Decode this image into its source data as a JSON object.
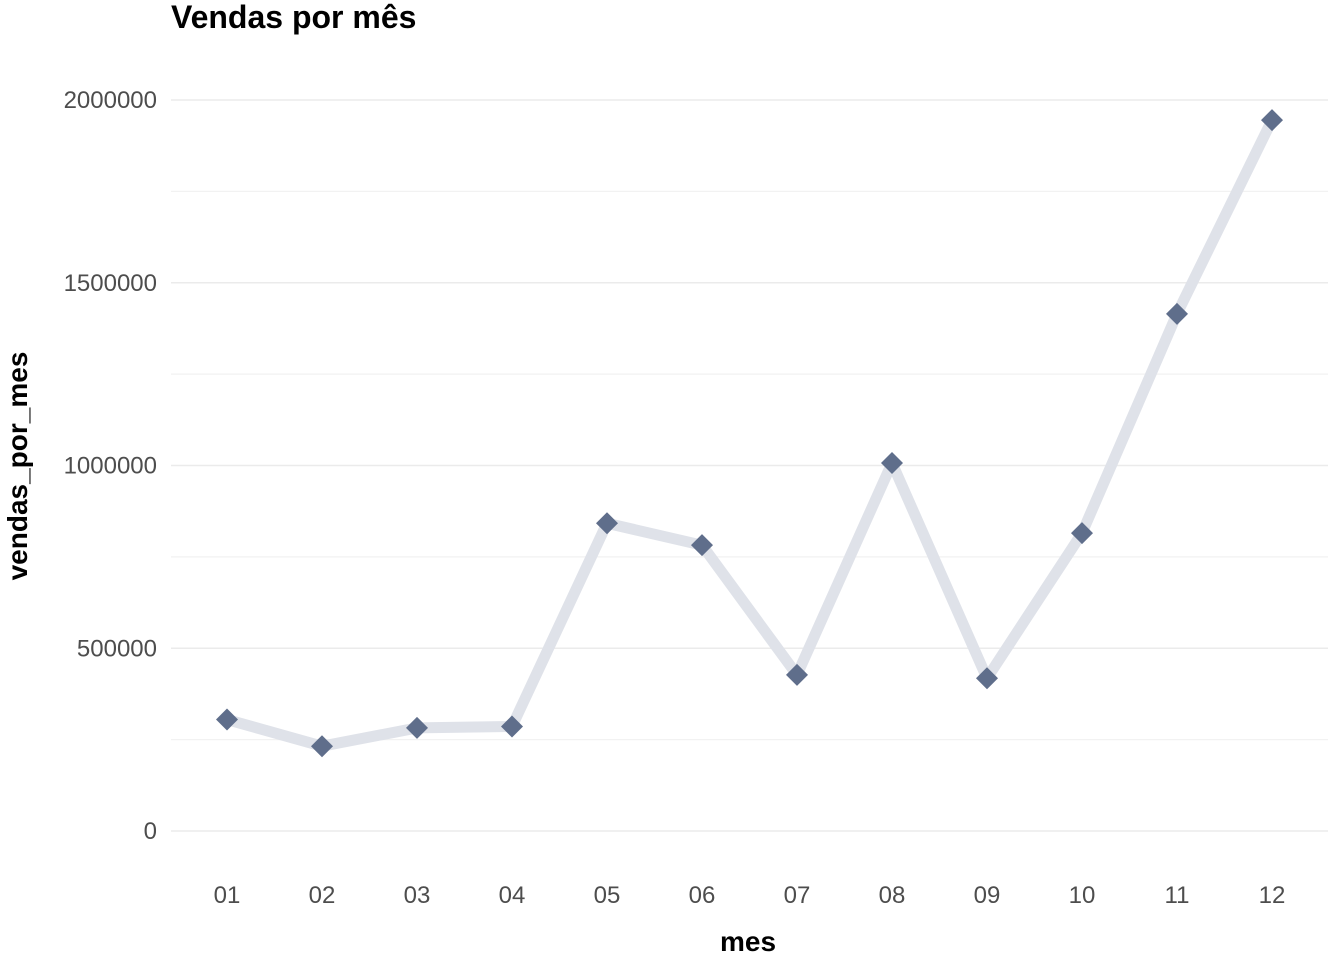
{
  "chart_data": {
    "type": "line",
    "title": "Vendas por mês",
    "xlabel": "mes",
    "ylabel": "vendas_por_mes",
    "categories": [
      "01",
      "02",
      "03",
      "04",
      "05",
      "06",
      "07",
      "08",
      "09",
      "10",
      "11",
      "12"
    ],
    "series": [
      {
        "values": [
          305000,
          232000,
          282000,
          286000,
          842000,
          782000,
          427000,
          1007000,
          418000,
          815000,
          1415000,
          1945000
        ]
      }
    ],
    "yticks": [
      0,
      500000,
      1000000,
      1500000,
      2000000
    ],
    "ytick_labels": [
      "0",
      "500000",
      "1000000",
      "1500000",
      "2000000"
    ],
    "ylim": [
      -100000,
      2140000
    ],
    "grid": true,
    "legend": "none",
    "colors": {
      "line": "#dfe2e9",
      "marker": "#5f6e8b",
      "grid_major": "#ebebeb",
      "grid_minor": "#f2f2f2"
    },
    "marker_shape": "diamond"
  }
}
